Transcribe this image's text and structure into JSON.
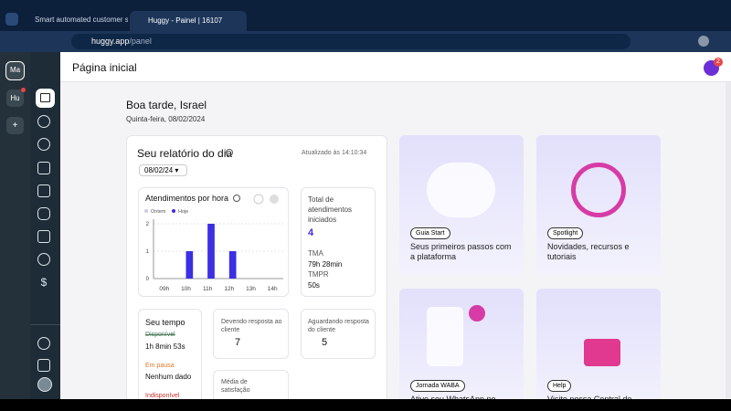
{
  "browser": {
    "tabs": [
      "Smart automated customer su",
      "Huggy - Painel | 16107"
    ],
    "url_host": "huggy.app",
    "url_path": "/panel"
  },
  "workspaces": [
    "Ma",
    "Hu",
    "+"
  ],
  "header": {
    "title": "Página inicial",
    "notifications": 2
  },
  "greeting": {
    "title": "Boa tarde, Israel",
    "date": "Quinta-feira, 08/02/2024"
  },
  "report": {
    "title": "Seu relatório do dia",
    "updated": "Atualizado às 14:10:34",
    "date_select": "08/02/24",
    "total_label": "Total de atendimentos iniciados",
    "total_value": 4,
    "tma_label": "TMA",
    "tma_value": "79h 28min",
    "tmpr_label": "TMPR",
    "tmpr_value": "50s",
    "time_title": "Seu tempo",
    "status": [
      {
        "label": "Disponível",
        "value": "1h 8min 53s"
      },
      {
        "label": "Em pausa",
        "value": "Nenhum dado"
      },
      {
        "label": "Indisponível"
      }
    ],
    "owed_label": "Devendo resposta ao cliente",
    "owed_value": 7,
    "waiting_label": "Aguardando resposta do cliente",
    "waiting_value": 5,
    "satisfaction_label": "Média de satisfação"
  },
  "chart_data": {
    "type": "bar",
    "title": "Atendimentos por hora",
    "categories": [
      "09h",
      "10h",
      "11h",
      "12h",
      "13h",
      "14h"
    ],
    "series": [
      {
        "name": "Ontem",
        "color": "#c9cbe6",
        "values": [
          0,
          0,
          0,
          0,
          0,
          0
        ]
      },
      {
        "name": "Hoje",
        "color": "#3b2fe3",
        "values": [
          0,
          1,
          2,
          1,
          0,
          0
        ]
      }
    ],
    "ylim": [
      0,
      2
    ],
    "yticks": [
      0,
      1,
      2
    ],
    "grid": true
  },
  "cards": [
    {
      "tag": "Guia Start",
      "text": "Seus primeiros passos com a plataforma"
    },
    {
      "tag": "Spotlight",
      "text": "Novidades, recursos e tutoriais"
    },
    {
      "tag": "Jornada WABA",
      "text": "Ative seu WhatsApp no"
    },
    {
      "tag": "Help",
      "text": "Visite nossa Central de"
    }
  ]
}
